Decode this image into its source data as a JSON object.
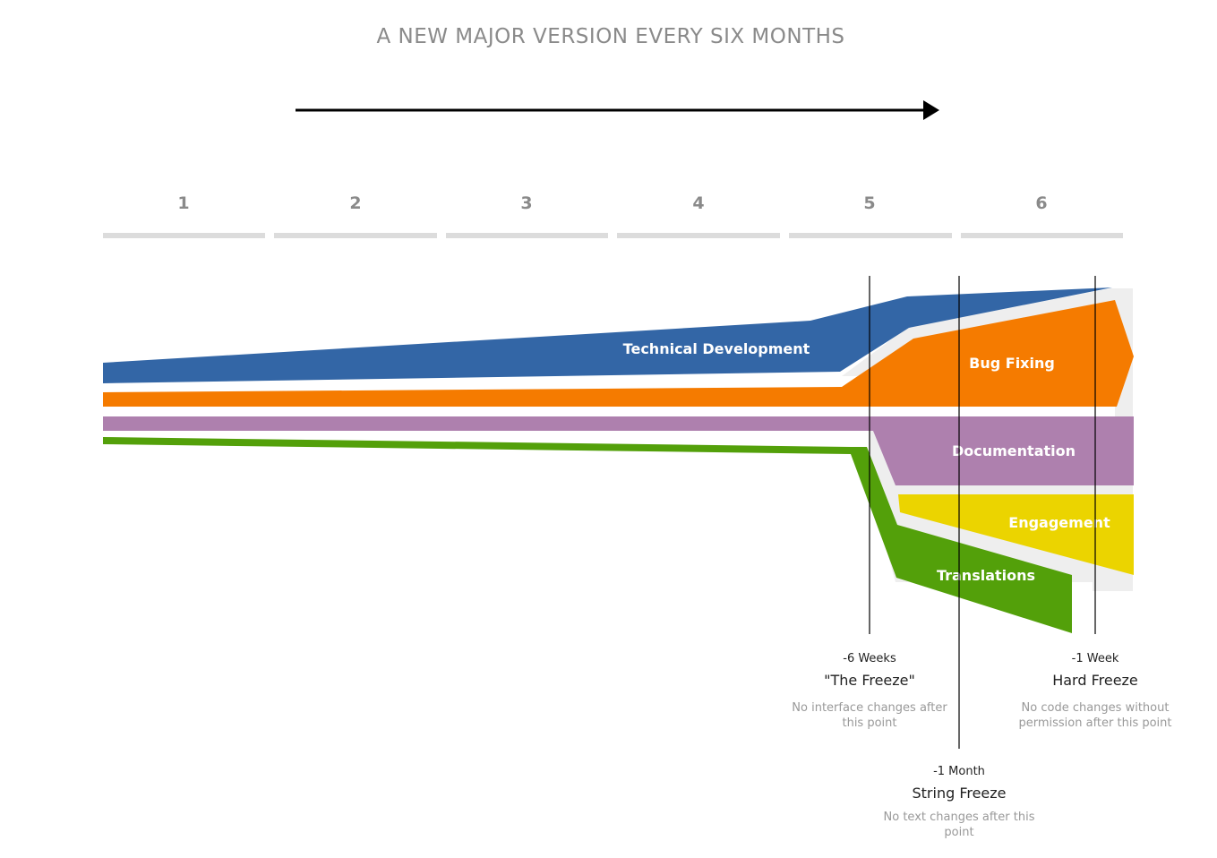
{
  "title": "A NEW MAJOR VERSION EVERY SIX MONTHS",
  "months": [
    "1",
    "2",
    "3",
    "4",
    "5",
    "6"
  ],
  "colors": {
    "technical": "#3366a6",
    "bugfix": "#f57b00",
    "documentation": "#ae80ae",
    "engagement": "#ebd400",
    "translations": "#53a00a",
    "month_bar": "#dcdcdc",
    "shadow": "#eeeeee"
  },
  "bands": {
    "technical": "Technical Development",
    "bugfix": "Bug Fixing",
    "documentation": "Documentation",
    "engagement": "Engagement",
    "translations": "Translations"
  },
  "milestones": [
    {
      "offset": "-6 Weeks",
      "name": "\"The Freeze\"",
      "desc": [
        "No interface changes after",
        "this point"
      ]
    },
    {
      "offset": "-1 Month",
      "name": "String Freeze",
      "desc": [
        "No text changes after this",
        "point"
      ]
    },
    {
      "offset": "-1 Week",
      "name": "Hard Freeze",
      "desc": [
        "No code changes without",
        "permission after this point"
      ]
    }
  ]
}
